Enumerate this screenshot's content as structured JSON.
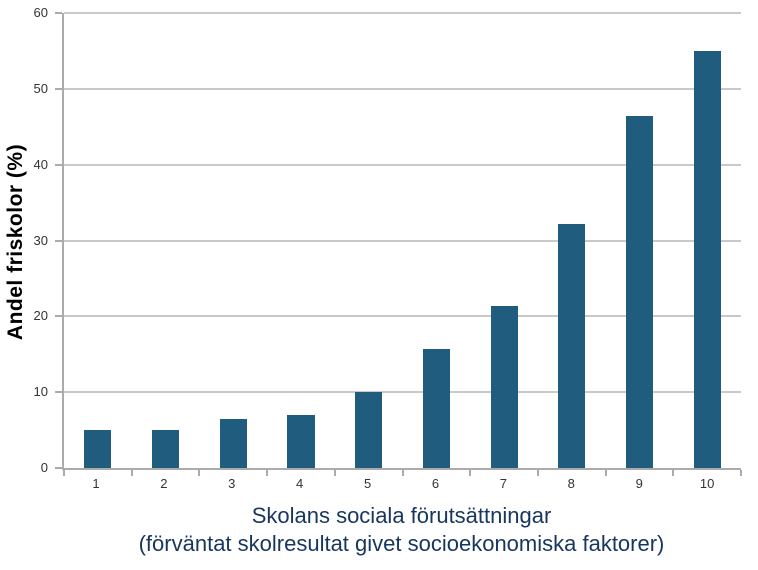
{
  "chart_data": {
    "type": "bar",
    "categories": [
      "1",
      "2",
      "3",
      "4",
      "5",
      "6",
      "7",
      "8",
      "9",
      "10"
    ],
    "values": [
      5,
      5,
      6.5,
      7,
      10,
      15.7,
      21.3,
      32.2,
      46.4,
      55
    ],
    "title": "",
    "ylabel": "Andel friskolor (%)",
    "xlabel_line1": "Skolans sociala förutsättningar",
    "xlabel_line2": "(förväntat skolresultat givet socioekonomiska faktorer)",
    "ylim": [
      0,
      60
    ],
    "yticks": [
      0,
      10,
      20,
      30,
      40,
      50,
      60
    ],
    "grid": true,
    "legend_position": "none",
    "colors": {
      "bar": "#1F5C7E",
      "gridline": "#C9C9C9",
      "axis": "#ABABAB",
      "tick_label": "#333333",
      "xlabel_text": "#17365D",
      "ylabel_text": "#000000",
      "background": "#FFFFFF"
    }
  }
}
